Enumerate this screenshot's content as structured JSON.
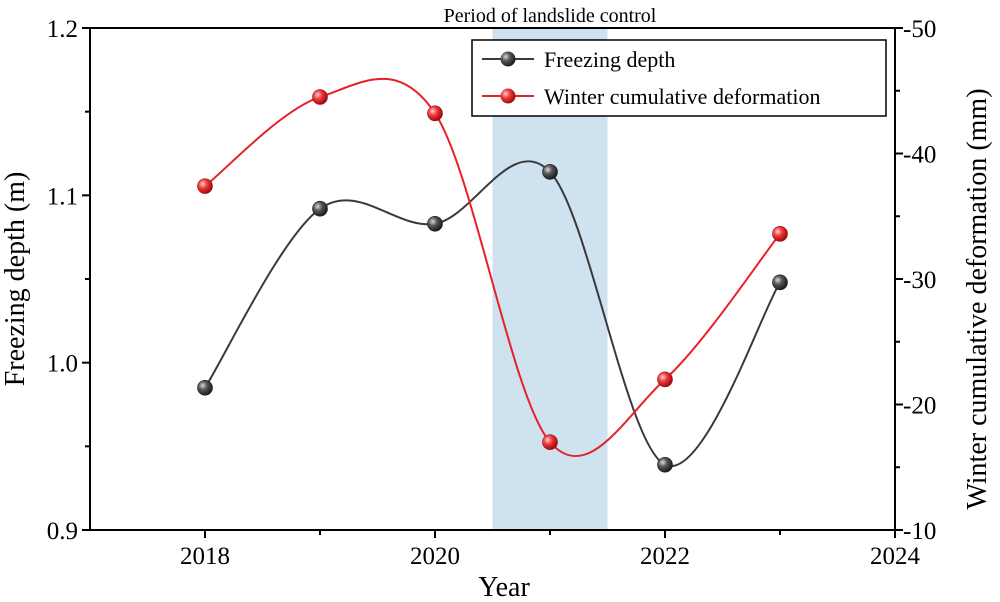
{
  "chart_data": {
    "type": "line",
    "title": "",
    "annotation": "Period of landslide control",
    "highlight_band": {
      "x_from": 2020.5,
      "x_to": 2021.5,
      "color": "#cfe2f0"
    },
    "xlabel": "Year",
    "ylabel_left": "Freezing depth (m)",
    "ylabel_right": "Winter cumulative deformation (mm)",
    "xlim": [
      2017,
      2024
    ],
    "xticks": [
      2018,
      2020,
      2022,
      2024
    ],
    "ylim_left": [
      0.9,
      1.2
    ],
    "yticks_left": [
      "0.9",
      "1.0",
      "1.1",
      "1.2"
    ],
    "ylim_right": [
      -10,
      -50
    ],
    "yticks_right": [
      "-10",
      "-20",
      "-30",
      "-40",
      "-50"
    ],
    "legend_position": "top-right",
    "series": [
      {
        "name": "Freezing depth",
        "axis": "left",
        "color": "#3a3a3a",
        "marker_color": "#555555",
        "x": [
          2018,
          2019,
          2020,
          2021,
          2022,
          2023
        ],
        "values": [
          0.985,
          1.092,
          1.083,
          1.114,
          0.939,
          1.048
        ]
      },
      {
        "name": "Winter cumulative deformation",
        "axis": "right",
        "color": "#e8202a",
        "marker_color": "#f03a3a",
        "x": [
          2018,
          2019,
          2020,
          2021,
          2022,
          2023
        ],
        "values": [
          -37.4,
          -44.5,
          -43.2,
          -17.0,
          -22.0,
          -33.6
        ]
      }
    ]
  }
}
